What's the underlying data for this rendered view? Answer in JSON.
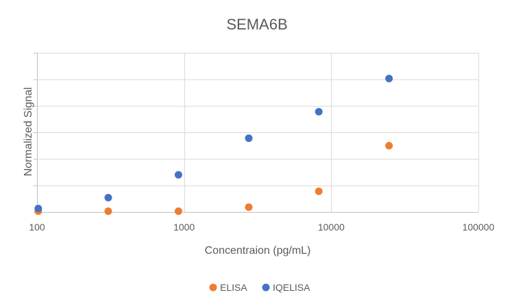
{
  "chart_data": {
    "type": "scatter",
    "title": "SEMA6B",
    "xlabel": "Concentraion (pg/mL)",
    "ylabel": "Normalized Signal",
    "x_scale": "log",
    "xlim": [
      100,
      100000
    ],
    "ylim": [
      0,
      6
    ],
    "x_ticks": [
      "100",
      "1000",
      "10000",
      "100000"
    ],
    "y_ticks_labeled": false,
    "grid": true,
    "legend_position": "bottom",
    "series": [
      {
        "name": "ELISA",
        "color": "#ED7D31",
        "x": [
          102,
          305,
          915,
          2750,
          8230,
          24700
        ],
        "y": [
          0.03,
          0.03,
          0.03,
          0.18,
          0.78,
          2.5
        ]
      },
      {
        "name": "IQELISA",
        "color": "#4472C4",
        "x": [
          102,
          305,
          915,
          2750,
          8230,
          24700
        ],
        "y": [
          0.13,
          0.54,
          1.4,
          2.78,
          3.78,
          5.03
        ]
      }
    ]
  }
}
